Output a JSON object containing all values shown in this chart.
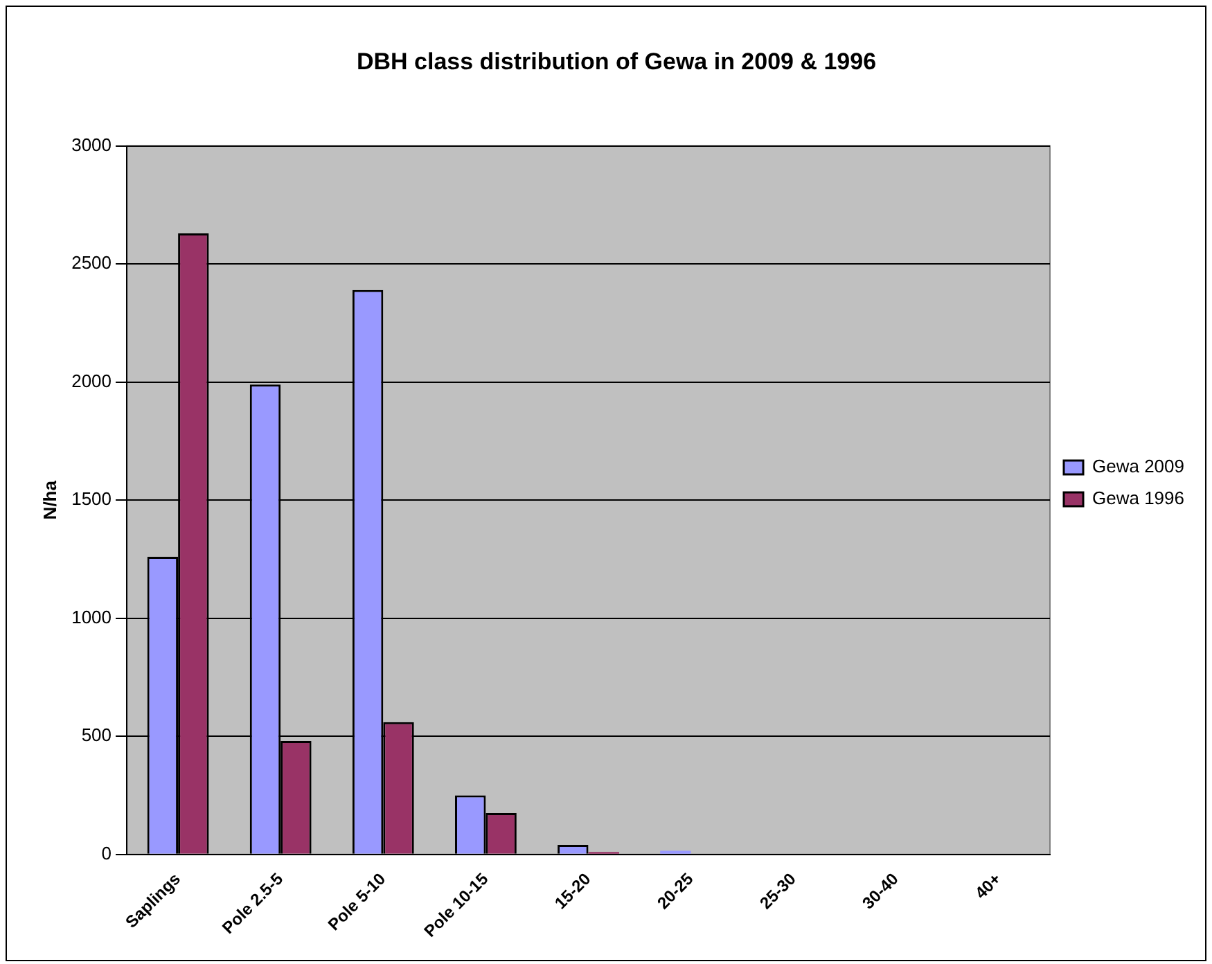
{
  "chart_data": {
    "type": "bar",
    "title": "DBH class distribution of Gewa in 2009 & 1996",
    "ylabel": "N/ha",
    "categories": [
      "Saplings",
      "Pole 2.5-5",
      "Pole 5-10",
      "Pole 10-15",
      "15-20",
      "20-25",
      "25-30",
      "30-40",
      "40+"
    ],
    "series": [
      {
        "name": "Gewa 2009",
        "color": "#9999ff",
        "values": [
          1260,
          1990,
          2390,
          250,
          40,
          15,
          0,
          0,
          0
        ]
      },
      {
        "name": "Gewa 1996",
        "color": "#993366",
        "values": [
          2630,
          480,
          560,
          175,
          10,
          0,
          0,
          0,
          0
        ]
      }
    ],
    "ylim": [
      0,
      3000
    ],
    "yticks": [
      0,
      500,
      1000,
      1500,
      2000,
      2500,
      3000
    ],
    "grid": "y",
    "legend": "right"
  }
}
